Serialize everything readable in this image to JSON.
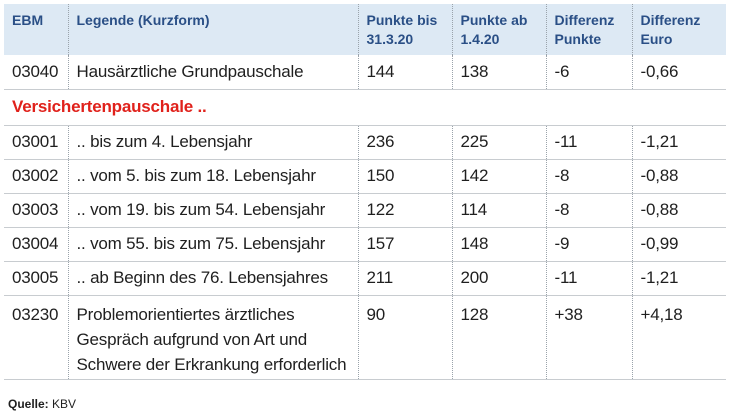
{
  "header": {
    "ebm": "EBM",
    "legende": "Legende (Kurzform)",
    "punkte_bis": "Punkte bis 31.3.20",
    "punkte_ab": "Punkte ab 1.4.20",
    "diff_punkte": "Differenz Punkte",
    "diff_euro": "Differenz Euro"
  },
  "rows": [
    {
      "ebm": "03040",
      "legende": "Hausärztliche Grundpauschale",
      "bis": "144",
      "ab": "138",
      "dp": "-6",
      "de": "-0,66"
    },
    {
      "ebm": "03001",
      "legende": ".. bis zum 4. Lebensjahr",
      "bis": "236",
      "ab": "225",
      "dp": "-11",
      "de": "-1,21"
    },
    {
      "ebm": "03002",
      "legende": ".. vom 5. bis zum 18. Lebensjahr",
      "bis": "150",
      "ab": "142",
      "dp": "-8",
      "de": "-0,88"
    },
    {
      "ebm": "03003",
      "legende": ".. vom 19. bis zum 54. Lebensjahr",
      "bis": "122",
      "ab": "114",
      "dp": "-8",
      "de": "-0,88"
    },
    {
      "ebm": "03004",
      "legende": ".. vom 55. bis zum 75. Lebensjahr",
      "bis": "157",
      "ab": "148",
      "dp": "-9",
      "de": "-0,99"
    },
    {
      "ebm": "03005",
      "legende": ".. ab Beginn des 76. Lebensjahres",
      "bis": "211",
      "ab": "200",
      "dp": "-11",
      "de": "-1,21"
    },
    {
      "ebm": "03230",
      "legende": "Problemorientiertes ärztliches Gespräch aufgrund von Art und Schwere der Erkrankung erforderlich",
      "bis": "90",
      "ab": "128",
      "dp": "+38",
      "de": "+4,18"
    }
  ],
  "section_label": "Versichertenpauschale ..",
  "source": {
    "label": "Quelle:",
    "value": "KBV"
  },
  "colors": {
    "header_bg": "#dde9f4",
    "header_text": "#2a4f86",
    "section_text": "#e0211b"
  }
}
